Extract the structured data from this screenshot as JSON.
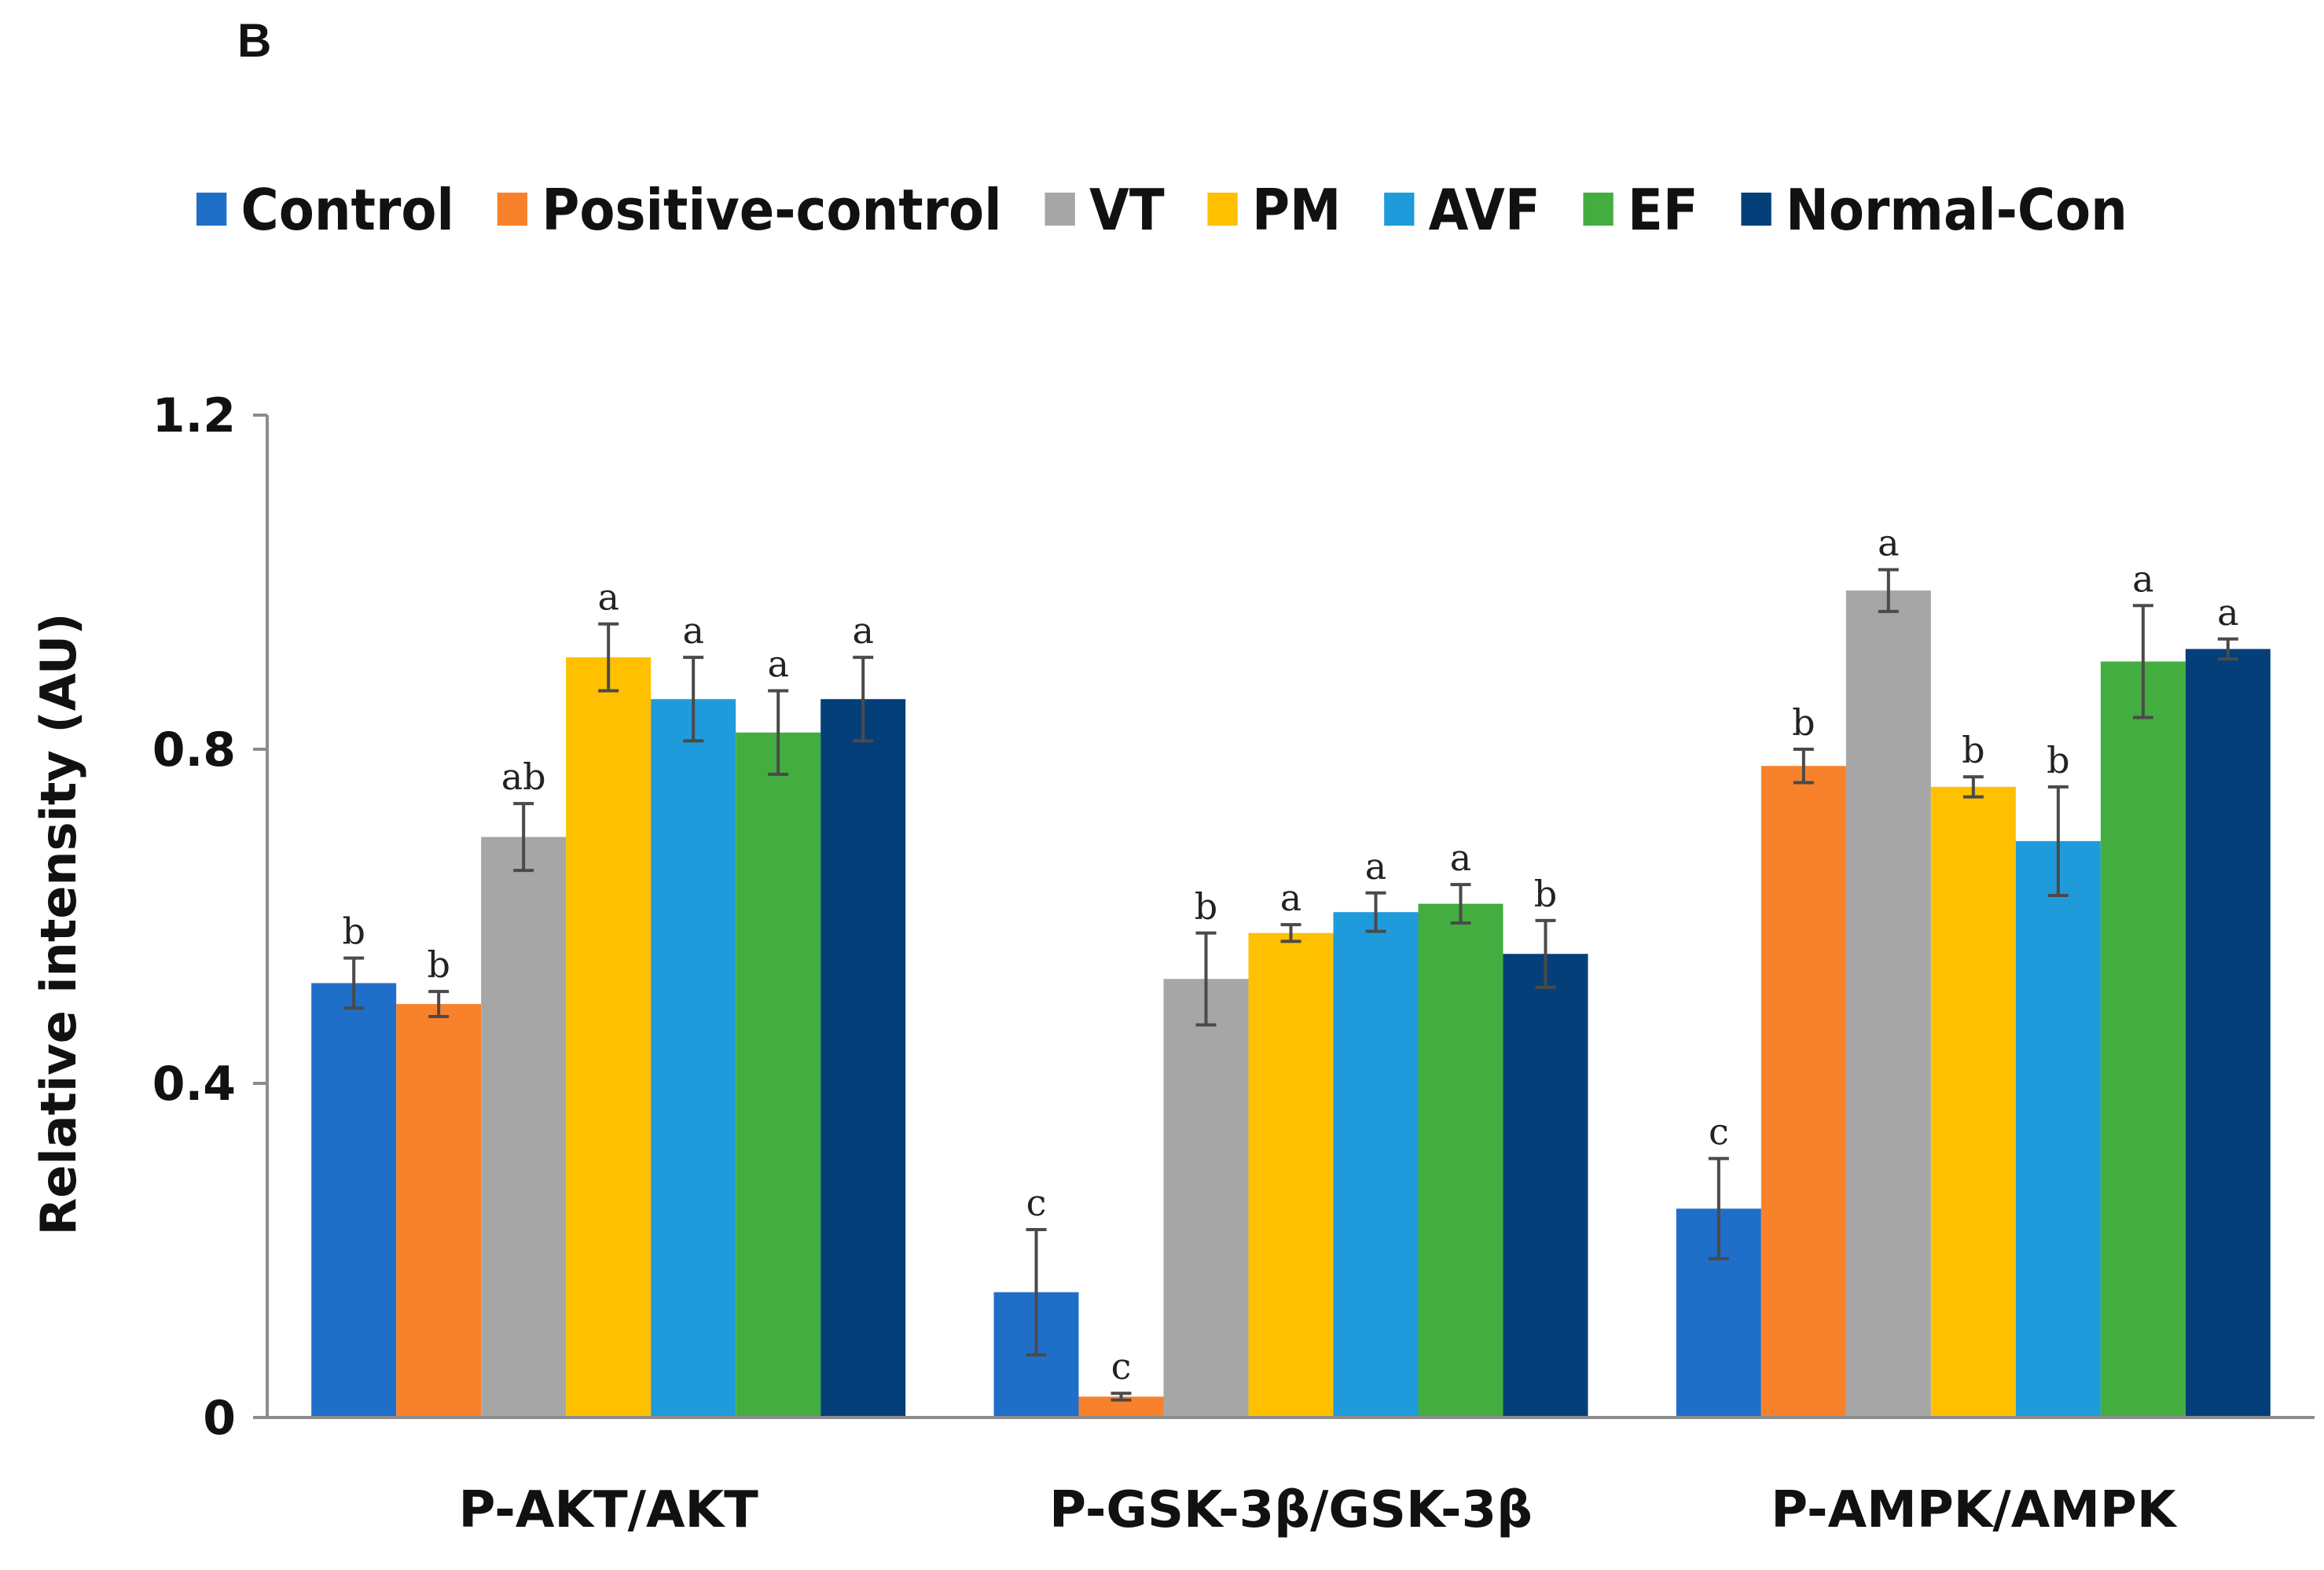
{
  "panel_label": "B",
  "chart_data": {
    "type": "bar",
    "title": "",
    "xlabel": "",
    "ylabel": "Relative intensity (AU)",
    "ylim": [
      0,
      1.2
    ],
    "yticks": [
      {
        "value": 0,
        "label": "0"
      },
      {
        "value": 0.4,
        "label": "0.4"
      },
      {
        "value": 0.8,
        "label": "0.8"
      },
      {
        "value": 1.2,
        "label": "1.2"
      }
    ],
    "grid": false,
    "legend_position": "top",
    "categories": [
      "P-AKT/AKT",
      "P-GSK-3β/GSK-3β",
      "P-AMPK/AMPK"
    ],
    "series": [
      {
        "name": "Control",
        "color": "#1F6FC9",
        "values": [
          0.52,
          0.15,
          0.25
        ],
        "errors": [
          0.03,
          0.075,
          0.06
        ],
        "sig": [
          "b",
          "c",
          "c"
        ]
      },
      {
        "name": "Positive-control",
        "color": "#F8822B",
        "values": [
          0.495,
          0.025,
          0.78
        ],
        "errors": [
          0.015,
          0.004,
          0.02
        ],
        "sig": [
          "b",
          "c",
          "b"
        ]
      },
      {
        "name": "VT",
        "color": "#A6A6A6",
        "values": [
          0.695,
          0.525,
          0.99
        ],
        "errors": [
          0.04,
          0.055,
          0.025
        ],
        "sig": [
          "ab",
          "b",
          "a"
        ]
      },
      {
        "name": "PM",
        "color": "#FFC000",
        "values": [
          0.91,
          0.58,
          0.755
        ],
        "errors": [
          0.04,
          0.01,
          0.012
        ],
        "sig": [
          "a",
          "a",
          "b"
        ]
      },
      {
        "name": "AVF",
        "color": "#1F9BDB",
        "values": [
          0.86,
          0.605,
          0.69
        ],
        "errors": [
          0.05,
          0.023,
          0.065
        ],
        "sig": [
          "a",
          "a",
          "b"
        ]
      },
      {
        "name": "EF",
        "color": "#43AE3F",
        "values": [
          0.82,
          0.615,
          0.905
        ],
        "errors": [
          0.05,
          0.023,
          0.067
        ],
        "sig": [
          "a",
          "a",
          "a"
        ]
      },
      {
        "name": "Normal-Con",
        "color": "#043F7A",
        "values": [
          0.86,
          0.555,
          0.92
        ],
        "errors": [
          0.05,
          0.04,
          0.012
        ],
        "sig": [
          "a",
          "b",
          "a"
        ]
      }
    ]
  }
}
